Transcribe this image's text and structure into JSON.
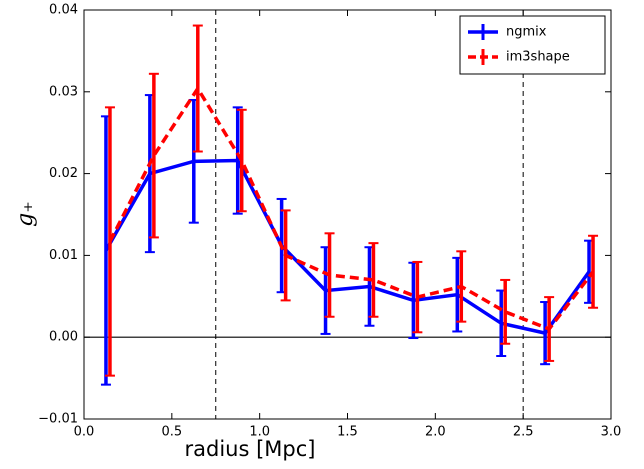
{
  "chart_data": {
    "type": "errorbar-line",
    "xlabel": "radius [Mpc]",
    "ylabel": "g₊",
    "x": [
      0.125,
      0.375,
      0.625,
      0.875,
      1.125,
      1.375,
      1.625,
      1.875,
      2.125,
      2.375,
      2.625,
      2.875
    ],
    "series": [
      {
        "name": "ngmix",
        "color": "#0000ff",
        "dash": false,
        "values": [
          0.0106,
          0.02,
          0.0215,
          0.0216,
          0.0112,
          0.0057,
          0.0062,
          0.0045,
          0.0052,
          0.0017,
          0.0005,
          0.008
        ],
        "errors": [
          0.0164,
          0.0096,
          0.0075,
          0.0065,
          0.0057,
          0.0053,
          0.0048,
          0.0046,
          0.0045,
          0.004,
          0.0038,
          0.0038
        ]
      },
      {
        "name": "im3shape",
        "color": "#ff0000",
        "dash": true,
        "values": [
          0.0117,
          0.0222,
          0.0304,
          0.0216,
          0.01,
          0.0076,
          0.007,
          0.0049,
          0.0062,
          0.0031,
          0.001,
          0.008
        ],
        "errors": [
          0.0164,
          0.01,
          0.0077,
          0.0062,
          0.0055,
          0.0051,
          0.0045,
          0.0043,
          0.0043,
          0.0039,
          0.0039,
          0.0044
        ]
      }
    ],
    "xlim": [
      0,
      3
    ],
    "ylim": [
      -0.01,
      0.04
    ],
    "xticks": [
      {
        "value": 0,
        "label": "0.0"
      },
      {
        "value": 0.5,
        "label": "0.5"
      },
      {
        "value": 1,
        "label": "1.0"
      },
      {
        "value": 1.5,
        "label": "1.5"
      },
      {
        "value": 2,
        "label": "2.0"
      },
      {
        "value": 2.5,
        "label": "2.5"
      },
      {
        "value": 3,
        "label": "3.0"
      }
    ],
    "yticks": [
      {
        "value": -0.01,
        "label": "−0.01"
      },
      {
        "value": 0,
        "label": "0.00"
      },
      {
        "value": 0.01,
        "label": "0.01"
      },
      {
        "value": 0.02,
        "label": "0.02"
      },
      {
        "value": 0.03,
        "label": "0.03"
      },
      {
        "value": 0.04,
        "label": "0.04"
      }
    ],
    "vlines": [
      0.75,
      2.5
    ],
    "hline": 0,
    "legend": "upper right"
  }
}
